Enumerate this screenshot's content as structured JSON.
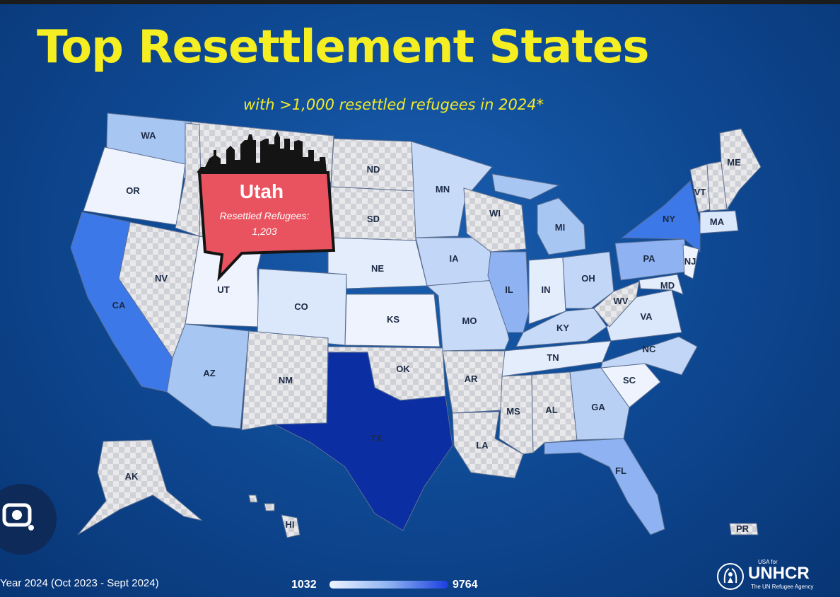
{
  "title": "Top Resettlement States",
  "subtitle": "with >1,000 resettled refugees in 2024*",
  "callout": {
    "state": "Utah",
    "label": "Resettled Refugees:",
    "value": "1,203"
  },
  "states": [
    {
      "abbr": "WA",
      "color": "#a8c6f2"
    },
    {
      "abbr": "OR",
      "color": "#eef3fd"
    },
    {
      "abbr": "CA",
      "color": "#3d78e8"
    },
    {
      "abbr": "NV",
      "color": "checker"
    },
    {
      "abbr": "UT",
      "color": "#eef3fd"
    },
    {
      "abbr": "AZ",
      "color": "#a8c6f2"
    },
    {
      "abbr": "CO",
      "color": "#dbe7fb"
    },
    {
      "abbr": "NM",
      "color": "checker"
    },
    {
      "abbr": "ND",
      "color": "checker"
    },
    {
      "abbr": "SD",
      "color": "checker"
    },
    {
      "abbr": "NE",
      "color": "#e4edfc"
    },
    {
      "abbr": "KS",
      "color": "#eef3fd"
    },
    {
      "abbr": "OK",
      "color": "checker"
    },
    {
      "abbr": "TX",
      "color": "#0b2fa3"
    },
    {
      "abbr": "MN",
      "color": "#c7daf8"
    },
    {
      "abbr": "IA",
      "color": "#c2d6f7"
    },
    {
      "abbr": "MO",
      "color": "#c7daf8"
    },
    {
      "abbr": "AR",
      "color": "checker"
    },
    {
      "abbr": "LA",
      "color": "checker"
    },
    {
      "abbr": "WI",
      "color": "checker"
    },
    {
      "abbr": "IL",
      "color": "#8fb3f2"
    },
    {
      "abbr": "MI",
      "color": "#a8c6f2"
    },
    {
      "abbr": "IN",
      "color": "#e4edfc"
    },
    {
      "abbr": "OH",
      "color": "#c2d6f7"
    },
    {
      "abbr": "KY",
      "color": "#c7daf8"
    },
    {
      "abbr": "TN",
      "color": "#e4edfc"
    },
    {
      "abbr": "MS",
      "color": "checker"
    },
    {
      "abbr": "AL",
      "color": "checker"
    },
    {
      "abbr": "GA",
      "color": "#b9d0f5"
    },
    {
      "abbr": "FL",
      "color": "#8fb3f2"
    },
    {
      "abbr": "SC",
      "color": "#eef3fd"
    },
    {
      "abbr": "NC",
      "color": "#c2d6f7"
    },
    {
      "abbr": "VA",
      "color": "#dbe7fb"
    },
    {
      "abbr": "WV",
      "color": "checker"
    },
    {
      "abbr": "PA",
      "color": "#8fb3f2"
    },
    {
      "abbr": "NY",
      "color": "#3d78e8"
    },
    {
      "abbr": "NJ",
      "color": "#eef3fd"
    },
    {
      "abbr": "MD",
      "color": "#e4edfc"
    },
    {
      "abbr": "VT",
      "color": "checker"
    },
    {
      "abbr": "MA",
      "color": "#dbe7fb"
    },
    {
      "abbr": "ME",
      "color": "checker"
    },
    {
      "abbr": "AK",
      "color": "checker"
    },
    {
      "abbr": "HI",
      "color": "checker"
    },
    {
      "abbr": "PR",
      "color": "checker"
    }
  ],
  "footer": {
    "period": "Year 2024 (Oct 2023 - Sept 2024)"
  },
  "legend": {
    "min": "1032",
    "max": "9764",
    "low_color": "#eef3ff",
    "high_color": "#1a3fe0"
  },
  "logo": {
    "prefix": "USA for",
    "name": "UNHCR",
    "tagline": "The UN Refugee Agency",
    "icon": "unhcr-hands-icon"
  },
  "lens_icon": "camera-lens-icon"
}
